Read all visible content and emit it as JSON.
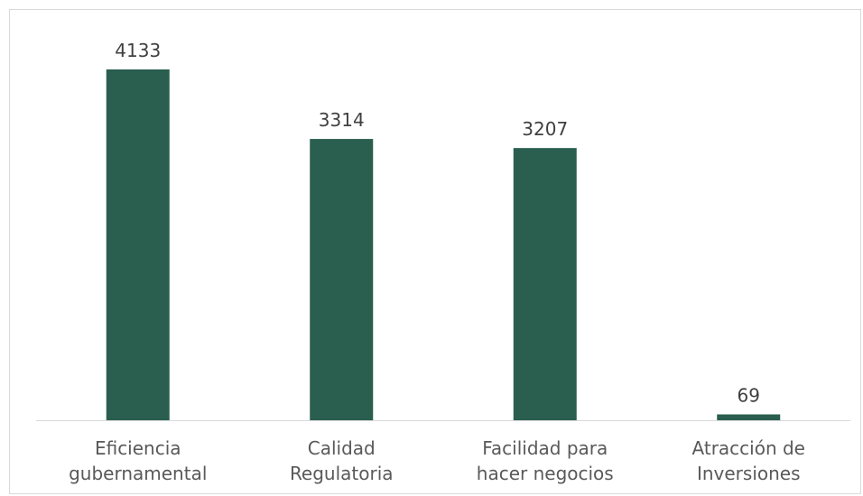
{
  "chart_data": {
    "type": "bar",
    "categories": [
      [
        "Eficiencia",
        "gubernamental"
      ],
      [
        "Calidad",
        "Regulatoria"
      ],
      [
        "Facilidad para",
        "hacer negocios"
      ],
      [
        "Atracción de",
        "Inversiones"
      ]
    ],
    "values": [
      4133,
      3314,
      3207,
      69
    ],
    "data_labels": [
      "4133",
      "3314",
      "3207",
      "69"
    ],
    "title": "",
    "xlabel": "",
    "ylabel": "",
    "ylim": [
      0,
      4133
    ],
    "grid": false,
    "legend": "none",
    "colors": {
      "bar": "#2a5e4e",
      "axis": "#d9d9d9"
    }
  }
}
